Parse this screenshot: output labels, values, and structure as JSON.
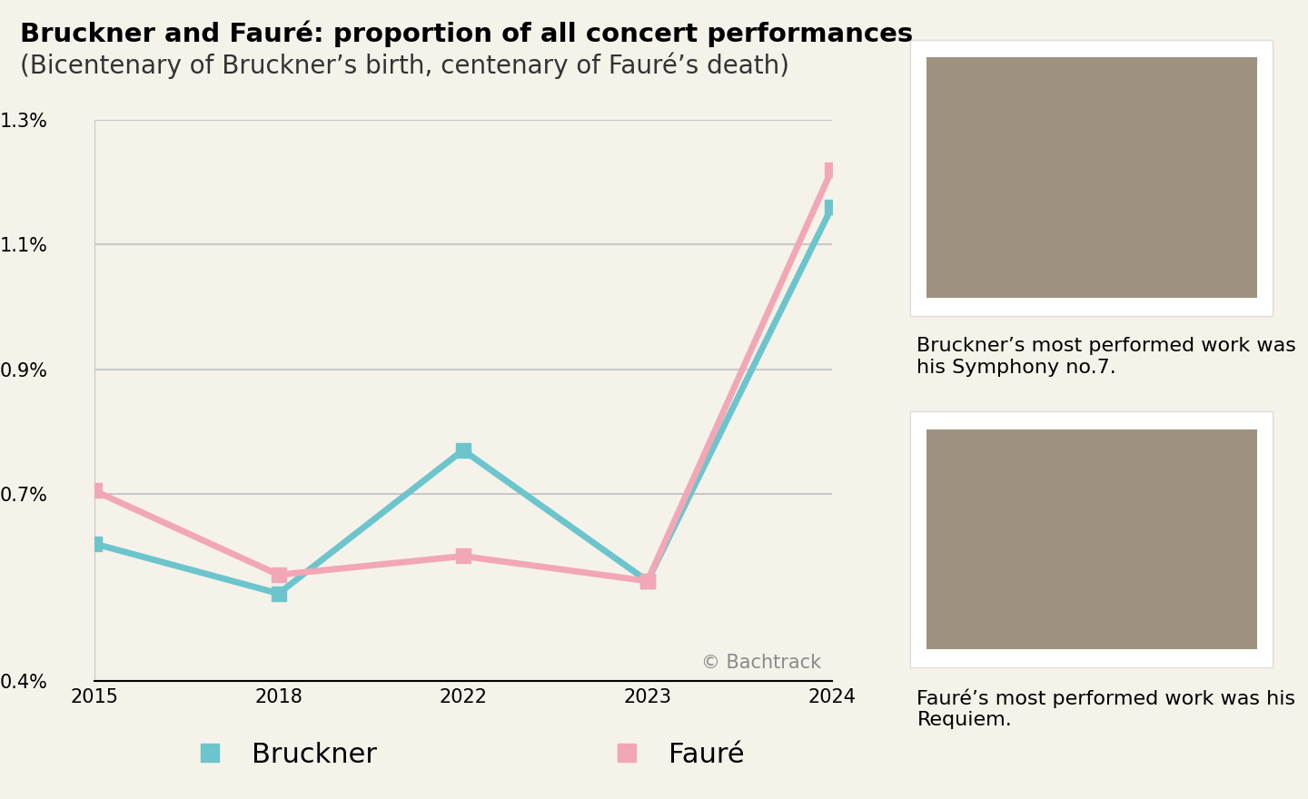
{
  "chart_data": {
    "type": "line",
    "title": "Bruckner and Fauré: proportion of all concert performances",
    "subtitle": "(Bicentenary of Bruckner’s birth, centenary of Fauré’s death)",
    "categories": [
      "2015",
      "2018",
      "2022",
      "2023",
      "2024"
    ],
    "series": [
      {
        "name": "Bruckner",
        "color": "#6cc5cc",
        "marker": "square",
        "line_style": "solid",
        "values": [
          0.62,
          0.54,
          0.77,
          0.56,
          1.16
        ]
      },
      {
        "name": "Fauré",
        "color": "#f2a7b6",
        "marker": "square",
        "line_style": "solid",
        "values": [
          0.705,
          0.57,
          0.6,
          0.56,
          1.22
        ]
      }
    ],
    "ylim": [
      0.4,
      1.3
    ],
    "yticks": [
      {
        "value": 0.4,
        "label": "0.4%"
      },
      {
        "value": 0.7,
        "label": "0.7%"
      },
      {
        "value": 0.9,
        "label": "0.9%"
      },
      {
        "value": 1.1,
        "label": "1.1%"
      },
      {
        "value": 1.3,
        "label": "1.3%"
      }
    ],
    "grid": true,
    "legend": "lower center",
    "annotations": [
      "© Bachtrack",
      "Bruckner’s most performed work was his Symphony no.7.",
      "Fauré’s most performed work was his Requiem."
    ]
  }
}
